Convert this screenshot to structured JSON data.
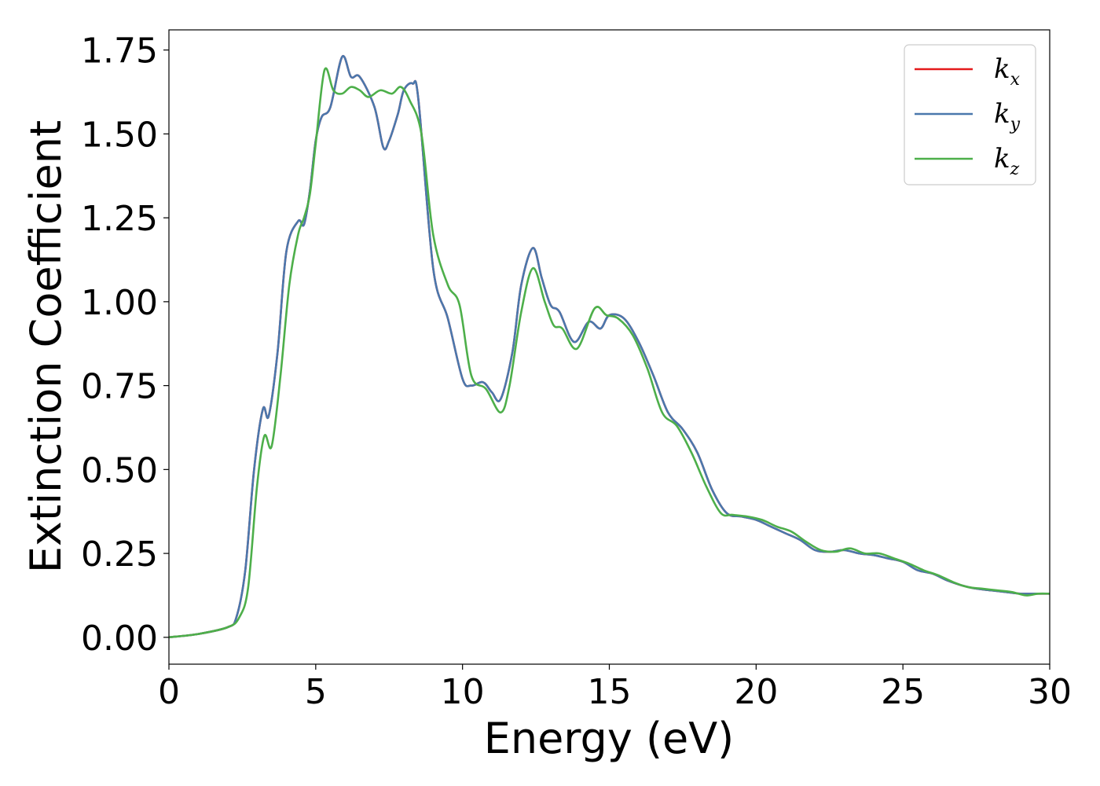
{
  "chart_data": {
    "type": "line",
    "title": "",
    "xlabel": "Energy (eV)",
    "ylabel": "Extinction Coefficient",
    "xlim": [
      0,
      30
    ],
    "ylim": [
      -0.08,
      1.81
    ],
    "xticks": [
      0,
      5,
      10,
      15,
      20,
      25,
      30
    ],
    "xtick_labels": [
      "0",
      "5",
      "10",
      "15",
      "20",
      "25",
      "30"
    ],
    "yticks": [
      0.0,
      0.25,
      0.5,
      0.75,
      1.0,
      1.25,
      1.5,
      1.75
    ],
    "ytick_labels": [
      "0.00",
      "0.25",
      "0.50",
      "0.75",
      "1.00",
      "1.25",
      "1.50",
      "1.75"
    ],
    "grid": false,
    "legend_position": "top-right",
    "series": [
      {
        "name": "k",
        "subscript": "x",
        "color": "#e41a1c",
        "x": [
          0,
          1,
          2,
          2.3,
          2.6,
          2.9,
          3.2,
          3.4,
          3.7,
          4.0,
          4.4,
          4.6,
          4.8,
          5.0,
          5.2,
          5.5,
          5.9,
          6.2,
          6.5,
          7.0,
          7.3,
          7.5,
          7.8,
          8.0,
          8.3,
          8.5,
          9.0,
          9.5,
          10.0,
          10.3,
          10.7,
          11.0,
          11.3,
          11.7,
          12.0,
          12.4,
          12.7,
          13.0,
          13.3,
          13.8,
          14.3,
          14.7,
          15.0,
          15.5,
          16.0,
          16.5,
          17.0,
          17.5,
          18.0,
          18.5,
          19.0,
          19.5,
          20.0,
          20.5,
          21.0,
          21.5,
          22.0,
          22.5,
          23.0,
          23.5,
          24.0,
          24.5,
          25.0,
          25.5,
          26.0,
          26.5,
          27.0,
          27.5,
          28.0,
          28.5,
          29.0,
          29.5,
          30.0
        ],
        "y": [
          0.0,
          0.01,
          0.03,
          0.06,
          0.2,
          0.5,
          0.68,
          0.66,
          0.85,
          1.15,
          1.24,
          1.23,
          1.33,
          1.48,
          1.55,
          1.58,
          1.73,
          1.67,
          1.67,
          1.58,
          1.46,
          1.48,
          1.56,
          1.63,
          1.65,
          1.6,
          1.1,
          0.95,
          0.77,
          0.75,
          0.76,
          0.73,
          0.71,
          0.85,
          1.05,
          1.16,
          1.07,
          0.99,
          0.97,
          0.88,
          0.94,
          0.92,
          0.96,
          0.95,
          0.88,
          0.78,
          0.67,
          0.62,
          0.55,
          0.44,
          0.37,
          0.36,
          0.35,
          0.33,
          0.31,
          0.29,
          0.26,
          0.255,
          0.26,
          0.25,
          0.245,
          0.235,
          0.225,
          0.2,
          0.19,
          0.17,
          0.155,
          0.145,
          0.14,
          0.135,
          0.13,
          0.13,
          0.13
        ]
      },
      {
        "name": "k",
        "subscript": "y",
        "color": "#4a78ad",
        "x": [
          0,
          1,
          2,
          2.3,
          2.6,
          2.9,
          3.2,
          3.4,
          3.7,
          4.0,
          4.4,
          4.6,
          4.8,
          5.0,
          5.2,
          5.5,
          5.9,
          6.2,
          6.5,
          7.0,
          7.3,
          7.5,
          7.8,
          8.0,
          8.3,
          8.5,
          9.0,
          9.5,
          10.0,
          10.3,
          10.7,
          11.0,
          11.3,
          11.7,
          12.0,
          12.4,
          12.7,
          13.0,
          13.3,
          13.8,
          14.3,
          14.7,
          15.0,
          15.5,
          16.0,
          16.5,
          17.0,
          17.5,
          18.0,
          18.5,
          19.0,
          19.5,
          20.0,
          20.5,
          21.0,
          21.5,
          22.0,
          22.5,
          23.0,
          23.5,
          24.0,
          24.5,
          25.0,
          25.5,
          26.0,
          26.5,
          27.0,
          27.5,
          28.0,
          28.5,
          29.0,
          29.5,
          30.0
        ],
        "y": [
          0.0,
          0.01,
          0.03,
          0.06,
          0.2,
          0.5,
          0.68,
          0.66,
          0.85,
          1.15,
          1.24,
          1.23,
          1.33,
          1.48,
          1.55,
          1.58,
          1.73,
          1.67,
          1.67,
          1.58,
          1.46,
          1.48,
          1.56,
          1.63,
          1.65,
          1.6,
          1.1,
          0.95,
          0.77,
          0.75,
          0.76,
          0.73,
          0.71,
          0.85,
          1.05,
          1.16,
          1.07,
          0.99,
          0.97,
          0.88,
          0.94,
          0.92,
          0.96,
          0.95,
          0.88,
          0.78,
          0.67,
          0.62,
          0.55,
          0.44,
          0.37,
          0.36,
          0.35,
          0.33,
          0.31,
          0.29,
          0.26,
          0.255,
          0.26,
          0.25,
          0.245,
          0.235,
          0.225,
          0.2,
          0.19,
          0.17,
          0.155,
          0.145,
          0.14,
          0.135,
          0.13,
          0.13,
          0.13
        ]
      },
      {
        "name": "k",
        "subscript": "z",
        "color": "#4daf4a",
        "x": [
          0,
          1,
          2,
          2.4,
          2.7,
          3.0,
          3.25,
          3.5,
          3.8,
          4.1,
          4.4,
          4.6,
          4.8,
          5.0,
          5.3,
          5.6,
          5.9,
          6.2,
          6.5,
          6.8,
          7.2,
          7.6,
          7.9,
          8.2,
          8.6,
          9.0,
          9.5,
          9.9,
          10.3,
          10.8,
          11.3,
          11.6,
          12.0,
          12.4,
          12.8,
          13.1,
          13.4,
          13.9,
          14.5,
          14.9,
          15.3,
          15.8,
          16.3,
          16.8,
          17.3,
          17.8,
          18.3,
          18.8,
          19.2,
          19.7,
          20.2,
          20.7,
          21.2,
          21.7,
          22.2,
          22.7,
          23.2,
          23.7,
          24.2,
          24.7,
          25.2,
          25.7,
          26.2,
          26.7,
          27.2,
          27.7,
          28.2,
          28.7,
          29.2,
          29.6,
          30.0
        ],
        "y": [
          0.0,
          0.01,
          0.03,
          0.06,
          0.15,
          0.45,
          0.6,
          0.57,
          0.78,
          1.05,
          1.2,
          1.25,
          1.32,
          1.47,
          1.69,
          1.63,
          1.62,
          1.64,
          1.63,
          1.61,
          1.63,
          1.62,
          1.64,
          1.6,
          1.5,
          1.2,
          1.05,
          0.99,
          0.78,
          0.74,
          0.67,
          0.75,
          0.97,
          1.1,
          1.0,
          0.93,
          0.92,
          0.86,
          0.98,
          0.96,
          0.95,
          0.9,
          0.8,
          0.67,
          0.63,
          0.55,
          0.45,
          0.37,
          0.365,
          0.36,
          0.35,
          0.33,
          0.315,
          0.285,
          0.26,
          0.255,
          0.265,
          0.25,
          0.25,
          0.235,
          0.22,
          0.2,
          0.185,
          0.165,
          0.15,
          0.145,
          0.14,
          0.135,
          0.125,
          0.13,
          0.13
        ]
      }
    ]
  }
}
